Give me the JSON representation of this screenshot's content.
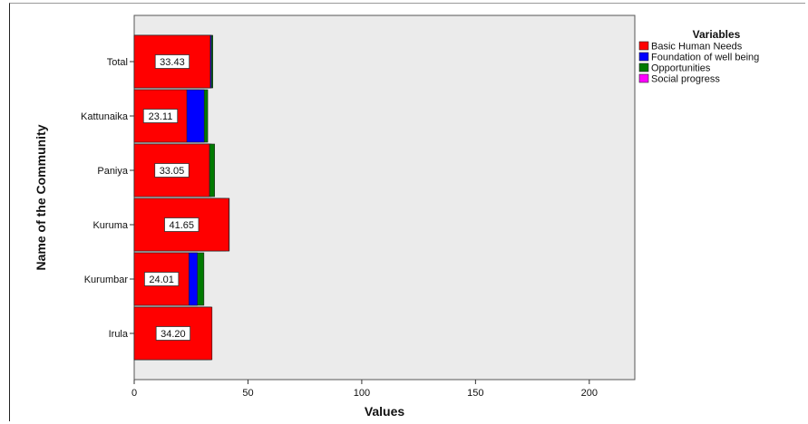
{
  "chart_data": {
    "type": "bar",
    "stacked": true,
    "orientation": "horizontal",
    "categories": [
      "Total",
      "Kattunaika",
      "Paniya",
      "Kuruma",
      "Kurumbar",
      "Irula"
    ],
    "series": [
      {
        "name": "Social progress",
        "color": "#ff00ff",
        "values": [
          33.98,
          28.61,
          33.93,
          40.2,
          27.57,
          33.62
        ],
        "labels": [
          "33.98",
          "28.61",
          "33.93",
          "40.2",
          "27.57",
          "33.62"
        ]
      },
      {
        "name": "Opportunities",
        "color": "#007a00",
        "values": [
          34.55,
          32.3,
          35.33,
          38.03,
          30.63,
          33.9
        ],
        "labels": [
          "34.55",
          "32.3",
          "35.33",
          "38.03",
          "30.63",
          "33.90"
        ]
      },
      {
        "name": "Foundation of well being",
        "color": "#0000ff",
        "values": [
          33.92,
          30.76,
          33.12,
          41.79,
          27.78,
          32.25
        ],
        "labels": [
          "33.92",
          "30.76",
          "33.12",
          "41.79",
          "27.78",
          "32.25"
        ]
      },
      {
        "name": "Basic Human Needs",
        "color": "#ff0000",
        "values": [
          33.43,
          23.11,
          33.05,
          41.65,
          24.01,
          34.2
        ],
        "labels": [
          "33.43",
          "23.11",
          "33.05",
          "41.65",
          "24.01",
          "34.20"
        ]
      }
    ],
    "legend_order": [
      "Basic Human Needs",
      "Foundation of well being",
      "Opportunities",
      "Social progress"
    ],
    "legend_title": "Variables",
    "legend_position": "right",
    "xlabel": "Values",
    "ylabel": "Name of the Community",
    "xlim": [
      0,
      220
    ],
    "xticks": [
      0,
      50,
      100,
      150,
      200
    ],
    "plot_background": "#ebebeb",
    "grid": false
  }
}
